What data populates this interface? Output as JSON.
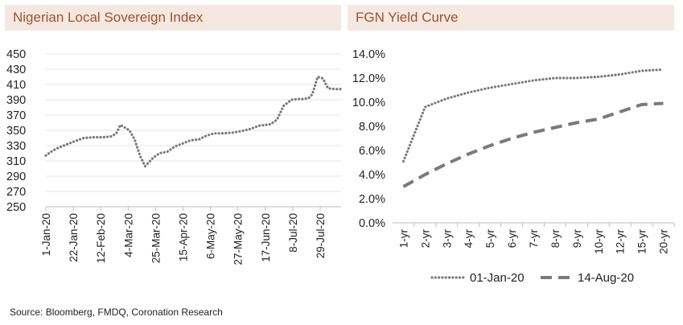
{
  "colors": {
    "title_bg": "#f4e8e1",
    "title_text": "#a0522d",
    "line": "#7a7a7a",
    "grid": "#e3e3e3"
  },
  "source": "Source: Bloomberg, FMDQ, Coronation Research",
  "chart_data": [
    {
      "type": "line",
      "title": "Nigerian Local Sovereign Index",
      "ylim": [
        250,
        450
      ],
      "yticks": [
        250,
        270,
        290,
        310,
        330,
        350,
        370,
        390,
        410,
        430,
        450
      ],
      "xticks": [
        "1-Jan-20",
        "22-Jan-20",
        "12-Feb-20",
        "4-Mar-20",
        "25-Mar-20",
        "15-Apr-20",
        "6-May-20",
        "27-May-20",
        "17-Jun-20",
        "8-Jul-20",
        "29-Jul-20"
      ],
      "x_start": "2020-01-01",
      "x_end": "2020-08-14",
      "grid": true,
      "series": [
        {
          "x": [
            "2020-01-01",
            "2020-01-05",
            "2020-01-09",
            "2020-01-16",
            "2020-01-22",
            "2020-01-30",
            "2020-02-07",
            "2020-02-14",
            "2020-02-20",
            "2020-02-24",
            "2020-02-27",
            "2020-03-02",
            "2020-03-05",
            "2020-03-09",
            "2020-03-13",
            "2020-03-17",
            "2020-03-23",
            "2020-03-28",
            "2020-04-03",
            "2020-04-09",
            "2020-04-15",
            "2020-04-21",
            "2020-04-27",
            "2020-05-03",
            "2020-05-09",
            "2020-05-15",
            "2020-05-23",
            "2020-05-30",
            "2020-06-06",
            "2020-06-12",
            "2020-06-17",
            "2020-06-21",
            "2020-06-26",
            "2020-07-01",
            "2020-07-07",
            "2020-07-12",
            "2020-07-16",
            "2020-07-20",
            "2020-07-23",
            "2020-07-27",
            "2020-07-31",
            "2020-08-04",
            "2020-08-09",
            "2020-08-14"
          ],
          "values": [
            317,
            322,
            326,
            331,
            335,
            340,
            341,
            341,
            342,
            346,
            357,
            353,
            350,
            338,
            317,
            303,
            314,
            320,
            322,
            329,
            333,
            337,
            338,
            343,
            346,
            346,
            347,
            349,
            352,
            356,
            357,
            358,
            364,
            382,
            390,
            391,
            391,
            392,
            397,
            420,
            418,
            405,
            404,
            404
          ]
        }
      ]
    },
    {
      "type": "line",
      "title": "FGN Yield Curve",
      "ylim": [
        0,
        14
      ],
      "yticks": [
        "0.0%",
        "2.0%",
        "4.0%",
        "6.0%",
        "8.0%",
        "10.0%",
        "12.0%",
        "14.0%"
      ],
      "categories": [
        "1-yr",
        "2-yr",
        "3-yr",
        "4-yr",
        "5-yr",
        "6-yr",
        "7-yr",
        "8-yr",
        "9-yr",
        "10-yr",
        "12-yr",
        "15-yr",
        "20-yr"
      ],
      "legend_position": "bottom",
      "grid": false,
      "series": [
        {
          "name": "01-Jan-20",
          "style": "dotted",
          "values": [
            5.1,
            9.6,
            10.3,
            10.8,
            11.2,
            11.5,
            11.8,
            12.0,
            12.0,
            12.1,
            12.3,
            12.6,
            12.7
          ]
        },
        {
          "name": "14-Aug-20",
          "style": "dashed",
          "values": [
            3.0,
            4.0,
            4.9,
            5.7,
            6.4,
            7.0,
            7.5,
            7.9,
            8.3,
            8.6,
            9.2,
            9.8,
            9.9
          ]
        }
      ]
    }
  ]
}
